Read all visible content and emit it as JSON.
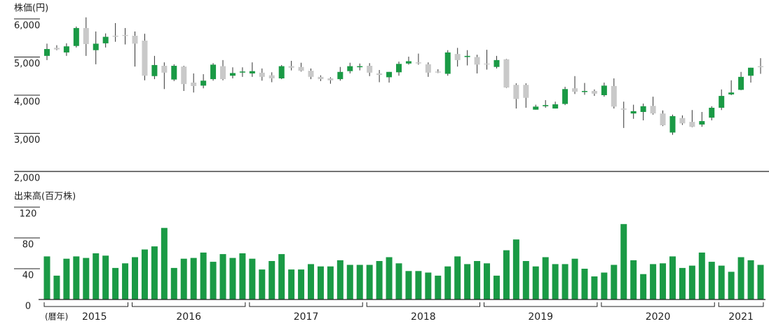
{
  "chart_data": [
    {
      "type": "candlestick",
      "axis_label": "株価(円)",
      "up_color": "#1a9a45",
      "down_color": "#c9c9c9",
      "wick_color": "#333333",
      "ylim": [
        2000,
        6000
      ],
      "yticks": [
        {
          "value": 2000,
          "label": "2,000"
        },
        {
          "value": 3000,
          "label": "3,000"
        },
        {
          "value": 4000,
          "label": "4,000"
        },
        {
          "value": 5000,
          "label": "5,000"
        },
        {
          "value": 6000,
          "label": "6,000"
        }
      ],
      "open": [
        5030,
        5240,
        5120,
        5290,
        5760,
        5180,
        5360,
        5560,
        5580,
        5560,
        5430,
        4500,
        4770,
        4410,
        4750,
        4330,
        4250,
        4420,
        4760,
        4510,
        4600,
        4570,
        4590,
        4520,
        4440,
        4760,
        4740,
        4640,
        4480,
        4440,
        4420,
        4630,
        4750,
        4770,
        4570,
        4470,
        4600,
        4830,
        4860,
        4810,
        4620,
        4560,
        5080,
        5000,
        5000,
        4830,
        4740,
        4940,
        4270,
        4270,
        3620,
        3710,
        3650,
        3770,
        4180,
        4100,
        4110,
        4000,
        4240,
        3650,
        3520,
        3560,
        3720,
        3520,
        3020,
        3400,
        3300,
        3230,
        3410,
        3670,
        4020,
        4140,
        4510,
        4760
      ],
      "high": [
        5350,
        5310,
        5360,
        5800,
        6040,
        5670,
        5620,
        5890,
        5760,
        5670,
        5610,
        5030,
        4860,
        4810,
        4770,
        4570,
        4550,
        4840,
        4920,
        4730,
        4730,
        4860,
        4700,
        4600,
        4790,
        4900,
        4850,
        4700,
        4520,
        4470,
        4740,
        4850,
        4830,
        4840,
        4660,
        4610,
        4880,
        5010,
        5090,
        4860,
        4680,
        5180,
        5240,
        5180,
        5060,
        5190,
        5030,
        4950,
        4310,
        4310,
        3750,
        3870,
        3830,
        4220,
        4500,
        4320,
        4150,
        4330,
        4440,
        3830,
        3750,
        3780,
        3960,
        3600,
        3490,
        3470,
        3610,
        3560,
        3710,
        4150,
        4390,
        4610,
        4720,
        4970
      ],
      "low": [
        4920,
        5180,
        5030,
        5250,
        5030,
        4810,
        5250,
        5400,
        5330,
        4750,
        4390,
        4420,
        4160,
        4370,
        4110,
        4070,
        4180,
        4380,
        4390,
        4440,
        4480,
        4480,
        4380,
        4340,
        4420,
        4650,
        4620,
        4420,
        4370,
        4300,
        4380,
        4570,
        4650,
        4500,
        4340,
        4330,
        4510,
        4800,
        4800,
        4480,
        4580,
        4510,
        4750,
        4780,
        4570,
        4670,
        4700,
        4190,
        3650,
        3670,
        3620,
        3670,
        3650,
        3740,
        4030,
        4010,
        3980,
        3960,
        3650,
        3140,
        3380,
        3340,
        3490,
        3190,
        2960,
        3220,
        3160,
        3170,
        3340,
        3610,
        4000,
        4130,
        4330,
        4560
      ],
      "close": [
        5210,
        5200,
        5280,
        5760,
        5340,
        5350,
        5530,
        5540,
        5560,
        5350,
        4510,
        4790,
        4590,
        4770,
        4290,
        4240,
        4380,
        4800,
        4420,
        4580,
        4620,
        4630,
        4480,
        4440,
        4760,
        4720,
        4640,
        4480,
        4420,
        4390,
        4610,
        4760,
        4760,
        4590,
        4530,
        4610,
        4820,
        4890,
        4840,
        4590,
        4600,
        5120,
        4920,
        5030,
        4800,
        4810,
        4920,
        4200,
        3900,
        3930,
        3700,
        3740,
        3760,
        4160,
        4090,
        4110,
        4040,
        4250,
        3700,
        3620,
        3580,
        3710,
        3520,
        3210,
        3450,
        3260,
        3170,
        3320,
        3670,
        3980,
        4070,
        4480,
        4720,
        4750
      ]
    },
    {
      "type": "bar",
      "axis_label": "出来高(百万株)",
      "color": "#1a9a45",
      "ylim": [
        0,
        120
      ],
      "yticks": [
        0,
        40,
        80,
        120
      ],
      "values": [
        56,
        31,
        53,
        56,
        54,
        60,
        57,
        41,
        47,
        55,
        65,
        69,
        93,
        41,
        53,
        54,
        61,
        49,
        59,
        54,
        60,
        53,
        39,
        50,
        59,
        39,
        39,
        46,
        43,
        43,
        51,
        45,
        45,
        45,
        50,
        55,
        47,
        37,
        37,
        35,
        31,
        43,
        56,
        46,
        50,
        47,
        31,
        64,
        78,
        50,
        43,
        55,
        46,
        46,
        53,
        40,
        30,
        35,
        45,
        98,
        51,
        33,
        46,
        47,
        56,
        41,
        44,
        61,
        49,
        44,
        36,
        55,
        51,
        45
      ],
      "x_prefix": "(暦年)",
      "year_groups": [
        {
          "label": "2015",
          "count": 9
        },
        {
          "label": "2016",
          "count": 12
        },
        {
          "label": "2017",
          "count": 12
        },
        {
          "label": "2018",
          "count": 12
        },
        {
          "label": "2019",
          "count": 12
        },
        {
          "label": "2020",
          "count": 12
        },
        {
          "label": "2021",
          "count": 5
        }
      ]
    }
  ]
}
